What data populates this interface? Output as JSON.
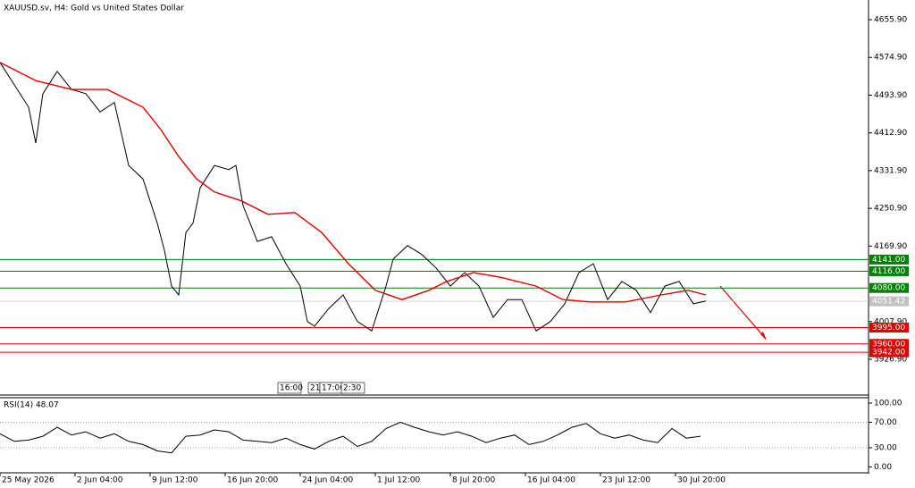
{
  "chart_data": [
    {
      "type": "line",
      "title": "XAUUSD.sv, H4:  Gold vs United States Dollar",
      "xlim": [
        0,
        486
      ],
      "xticks": [
        {
          "value": 0,
          "label": "25 May 2026"
        },
        {
          "value": 42,
          "label": "2 Jun 04:00"
        },
        {
          "value": 84,
          "label": "9 Jun 12:00"
        },
        {
          "value": 126,
          "label": "16 Jun 20:00"
        },
        {
          "value": 168,
          "label": "24 Jun 04:00"
        },
        {
          "value": 210,
          "label": "1 Jul 12:00"
        },
        {
          "value": 252,
          "label": "8 Jul 20:00"
        },
        {
          "value": 294,
          "label": "16 Jul 04:00"
        },
        {
          "value": 336,
          "label": "23 Jul 12:00"
        },
        {
          "value": 378,
          "label": "30 Jul 20:00"
        }
      ],
      "ylim": [
        3850.2,
        4698.1
      ],
      "yticks": [
        {
          "value": 4655.9,
          "label": "4655.90"
        },
        {
          "value": 4574.9,
          "label": "4574.90"
        },
        {
          "value": 4493.9,
          "label": "4493.90"
        },
        {
          "value": 4412.9,
          "label": "4412.90"
        },
        {
          "value": 4331.9,
          "label": "4331.90"
        },
        {
          "value": 4250.9,
          "label": "4250.90"
        },
        {
          "value": 4169.9,
          "label": "4169.90"
        },
        {
          "value": 4007.9,
          "label": "4007.90"
        },
        {
          "value": 3926.9,
          "label": "3926.90"
        }
      ],
      "series": [
        {
          "name": "XAUUSD",
          "color": "#000000",
          "x": [
            0,
            8,
            16,
            20,
            24,
            32,
            40,
            48,
            56,
            64,
            72,
            80,
            88,
            92,
            96,
            100,
            104,
            108,
            112,
            120,
            128,
            132,
            136,
            144,
            152,
            160,
            168,
            172,
            176,
            184,
            192,
            200,
            208,
            216,
            220,
            228,
            236,
            244,
            252,
            260,
            268,
            276,
            284,
            292,
            300,
            308,
            316,
            324,
            332,
            340,
            348,
            356,
            364,
            372,
            380,
            388,
            395
          ],
          "values": [
            4564,
            4516,
            4468,
            4391,
            4497,
            4545,
            4506,
            4497,
            4458,
            4478,
            4343,
            4314,
            4219,
            4161,
            4084,
            4065,
            4199,
            4219,
            4295,
            4343,
            4334,
            4343,
            4257,
            4180,
            4190,
            4132,
            4084,
            4008,
            3998,
            4036,
            4065,
            4008,
            3988,
            4084,
            4142,
            4171,
            4152,
            4123,
            4084,
            4113,
            4084,
            4017,
            4055,
            4055,
            3988,
            4008,
            4046,
            4113,
            4132,
            4055,
            4094,
            4075,
            4027,
            4084,
            4094,
            4046,
            4052
          ]
        },
        {
          "name": "MA",
          "color": "#e00000",
          "x": [
            0,
            20,
            40,
            60,
            80,
            90,
            100,
            110,
            120,
            135,
            150,
            165,
            180,
            195,
            210,
            225,
            240,
            250,
            265,
            280,
            300,
            315,
            330,
            350,
            370,
            385,
            395
          ],
          "values": [
            4564,
            4525,
            4506,
            4506,
            4468,
            4420,
            4362,
            4314,
            4286,
            4267,
            4238,
            4242,
            4199,
            4132,
            4075,
            4055,
            4075,
            4094,
            4113,
            4103,
            4084,
            4055,
            4050,
            4050,
            4065,
            4075,
            4065
          ]
        }
      ],
      "levels": [
        {
          "value": 4141,
          "label": "4141.00",
          "color": "#008000"
        },
        {
          "value": 4116,
          "label": "4116.00",
          "color": "#008000"
        },
        {
          "value": 4080,
          "label": "4080.00",
          "color": "#008000"
        },
        {
          "value": 3995,
          "label": "3995.00",
          "color": "#e00000"
        },
        {
          "value": 3960,
          "label": "3960.00",
          "color": "#e00000"
        },
        {
          "value": 3942,
          "label": "3942.00",
          "color": "#e00000"
        }
      ],
      "current_price": {
        "value": 4051.42,
        "label": "4051.42"
      },
      "crosshair_labels": [
        "16:00",
        "21",
        "17:00",
        "2:30"
      ]
    },
    {
      "type": "line",
      "title": "RSI(14) 48.07",
      "ylim": [
        -7.9,
        107
      ],
      "yticks": [
        {
          "value": 100,
          "label": "100.00"
        },
        {
          "value": 70,
          "label": "70.00"
        },
        {
          "value": 30,
          "label": "30.00"
        },
        {
          "value": 0,
          "label": "0.00"
        }
      ],
      "levels": [
        70,
        30
      ],
      "series": [
        {
          "name": "RSI",
          "color": "#000000",
          "x": [
            0,
            8,
            16,
            24,
            32,
            40,
            48,
            56,
            64,
            72,
            80,
            88,
            96,
            104,
            112,
            120,
            128,
            136,
            144,
            152,
            160,
            168,
            176,
            184,
            192,
            200,
            208,
            216,
            224,
            232,
            240,
            248,
            256,
            264,
            272,
            280,
            288,
            296,
            304,
            312,
            320,
            328,
            336,
            344,
            352,
            360,
            368,
            376,
            384,
            392
          ],
          "values": [
            52,
            40,
            42,
            48,
            62,
            50,
            55,
            45,
            52,
            40,
            35,
            25,
            22,
            48,
            50,
            58,
            55,
            42,
            40,
            38,
            45,
            35,
            28,
            40,
            48,
            32,
            40,
            60,
            70,
            62,
            55,
            50,
            55,
            48,
            38,
            45,
            50,
            35,
            40,
            50,
            62,
            68,
            52,
            45,
            50,
            42,
            38,
            60,
            45,
            48
          ]
        }
      ]
    }
  ]
}
